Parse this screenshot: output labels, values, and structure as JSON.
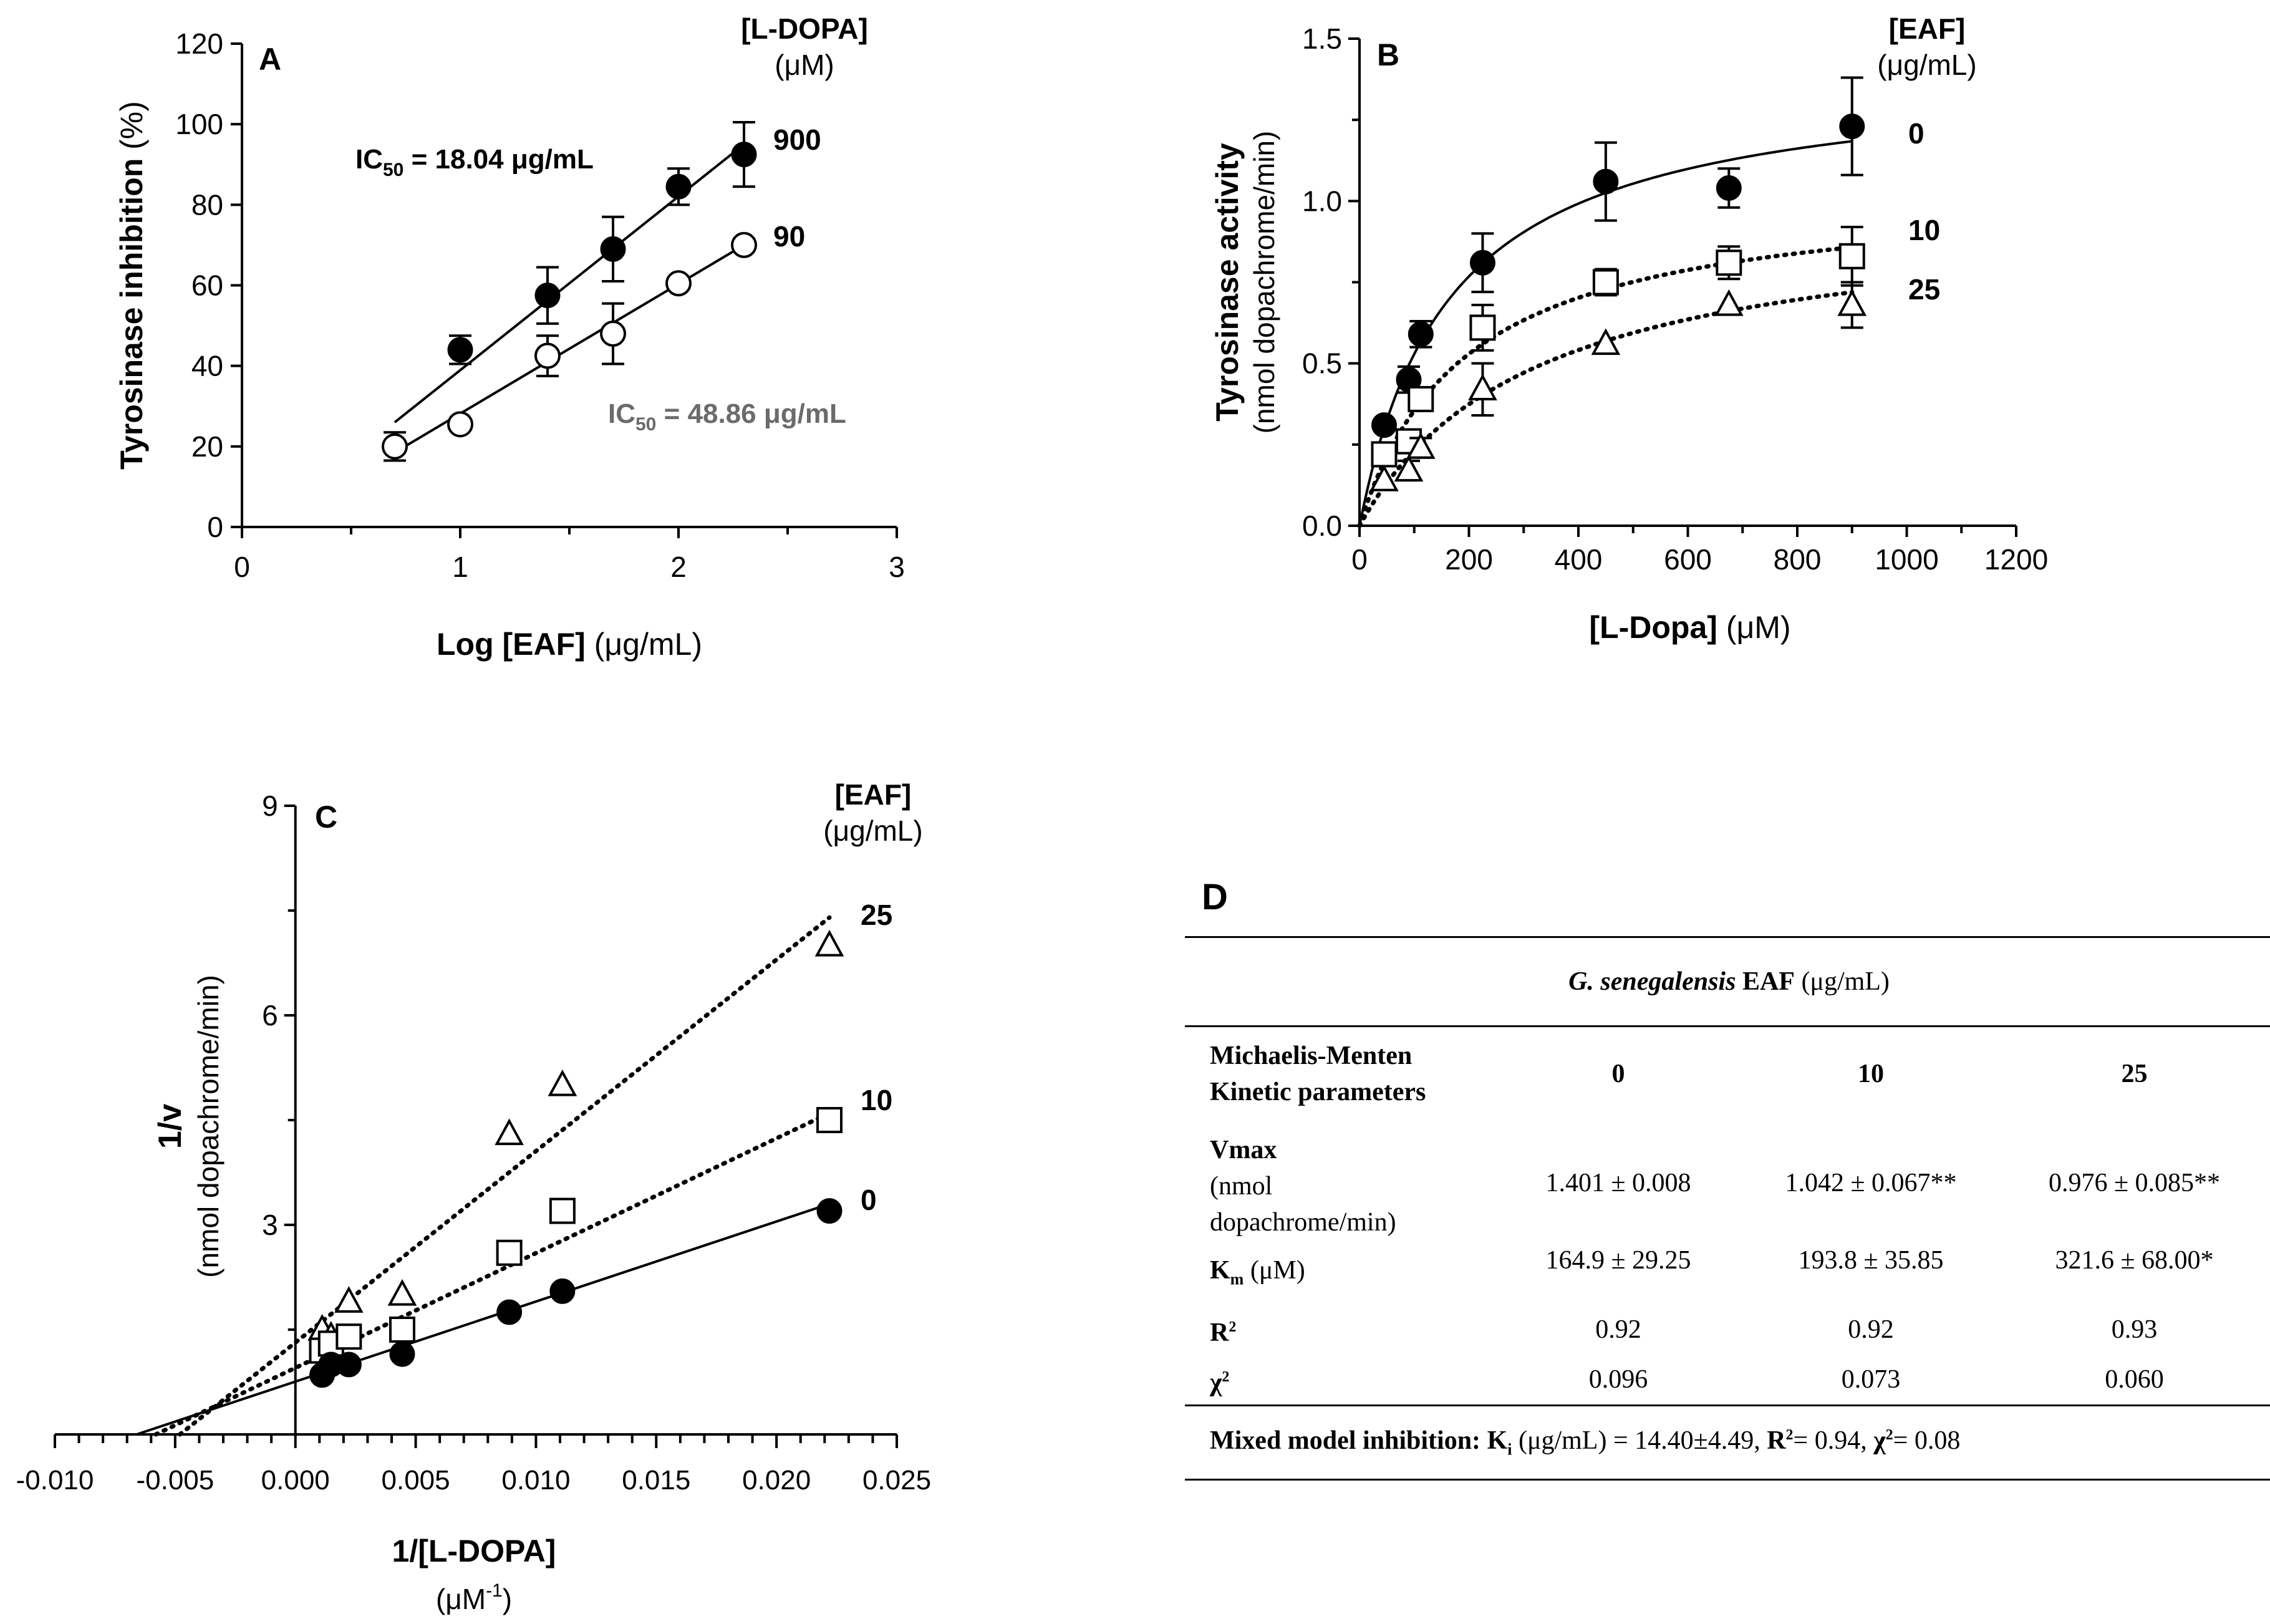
{
  "chart_data": [
    {
      "panel": "A",
      "type": "scatter",
      "ylabel": "Tyrosinase inhibition",
      "ylabel_unit": "(%)",
      "xlabel": "Log [EAF]",
      "xlabel_unit": "(μg/mL)",
      "xlim": [
        0,
        3
      ],
      "ylim": [
        0,
        120
      ],
      "xticks": [
        "0",
        "1",
        "2",
        "3"
      ],
      "yticks": [
        "0",
        "20",
        "40",
        "60",
        "80",
        "100",
        "120"
      ],
      "legend_title": "[L-DOPA]",
      "legend_unit": "(μM)",
      "series": [
        {
          "name": "900",
          "marker": "filled-circle",
          "x": [
            0.7,
            1.0,
            1.4,
            1.7,
            2.0,
            2.3
          ],
          "y": [
            20,
            44,
            57.5,
            69,
            84.5,
            92.5
          ],
          "err": [
            3.5,
            3.5,
            7,
            8,
            4.5,
            8
          ],
          "fit": [
            [
              0.7,
              26
            ],
            [
              2.3,
              95
            ]
          ]
        },
        {
          "name": "90",
          "marker": "open-circle",
          "x": [
            0.7,
            1.0,
            1.4,
            1.7,
            2.0,
            2.3
          ],
          "y": [
            20,
            25.5,
            42.5,
            48,
            60.5,
            70
          ],
          "err": [
            0,
            0,
            5,
            7.5,
            0,
            0
          ],
          "fit": [
            [
              0.7,
              18.5
            ],
            [
              2.3,
              70
            ]
          ]
        }
      ],
      "annotations": {
        "ic50_900_prefix": "IC",
        "ic50_900_sub": "50",
        "ic50_900_value": " = 18.04 μg/mL",
        "ic50_90_prefix": "IC",
        "ic50_90_sub": "50",
        "ic50_90_value": " = 48.86 μg/mL"
      }
    },
    {
      "panel": "B",
      "type": "scatter",
      "ylabel": "Tyrosinase activity",
      "ylabel2": "(nmol dopachrome/min)",
      "xlabel": "[L-Dopa]",
      "xlabel_unit": "(μM)",
      "xlim": [
        0,
        1200
      ],
      "ylim": [
        0,
        1.5
      ],
      "xticks": [
        "0",
        "200",
        "400",
        "600",
        "800",
        "1000",
        "1200"
      ],
      "yticks": [
        "0.0",
        "0.5",
        "1.0",
        "1.5"
      ],
      "legend_title": "[EAF]",
      "legend_unit": "(μg/mL)",
      "series": [
        {
          "name": "0",
          "marker": "filled-circle",
          "line": "solid",
          "vmax": 1.401,
          "km": 164.9,
          "x": [
            45,
            90,
            112,
            225,
            450,
            675,
            900
          ],
          "y": [
            0.31,
            0.45,
            0.59,
            0.81,
            1.06,
            1.04,
            1.23
          ],
          "err": [
            0,
            0.04,
            0.04,
            0.09,
            0.12,
            0.06,
            0.15
          ]
        },
        {
          "name": "10",
          "marker": "open-square",
          "line": "dotted",
          "vmax": 1.042,
          "km": 193.8,
          "x": [
            45,
            90,
            112,
            225,
            450,
            675,
            900
          ],
          "y": [
            0.22,
            0.26,
            0.39,
            0.61,
            0.75,
            0.81,
            0.83
          ],
          "err": [
            0,
            0.03,
            0.03,
            0.07,
            0.04,
            0.05,
            0.09
          ]
        },
        {
          "name": "25",
          "marker": "open-triangle",
          "line": "dotted",
          "vmax": 0.976,
          "km": 321.6,
          "x": [
            45,
            90,
            112,
            225,
            450,
            675,
            900
          ],
          "y": [
            0.14,
            0.17,
            0.24,
            0.42,
            0.56,
            0.68,
            0.68
          ],
          "err": [
            0,
            0.03,
            0.03,
            0.08,
            0,
            0,
            0.07
          ]
        }
      ]
    },
    {
      "panel": "C",
      "type": "scatter",
      "ylabel": "1/v",
      "ylabel2": "(nmol dopachrome/min)",
      "xlabel": "1/[L-DOPA]",
      "xlabel_unit_base": "(μM",
      "xlabel_unit_exp": "-1",
      "xlabel_unit_close": ")",
      "xlim": [
        -0.01,
        0.025
      ],
      "ylim": [
        0,
        9
      ],
      "xticks": [
        "-0.010",
        "-0.005",
        "0.000",
        "0.005",
        "0.010",
        "0.015",
        "0.020",
        "0.025"
      ],
      "yticks": [
        "3",
        "6",
        "9"
      ],
      "legend_title": "[EAF]",
      "legend_unit": "(μg/mL)",
      "series": [
        {
          "name": "25",
          "marker": "open-triangle",
          "line": "dotted",
          "x": [
            0.00111,
            0.00148,
            0.00222,
            0.00444,
            0.00889,
            0.0111,
            0.0222
          ],
          "y": [
            1.5,
            1.4,
            1.9,
            2.0,
            4.3,
            5.0,
            7.0
          ],
          "fit": [
            [
              -0.0048,
              0
            ],
            [
              0.0222,
              7.4
            ]
          ]
        },
        {
          "name": "10",
          "marker": "open-square",
          "line": "dotted",
          "x": [
            0.00111,
            0.00148,
            0.00222,
            0.00444,
            0.00889,
            0.0111,
            0.0222
          ],
          "y": [
            1.2,
            1.3,
            1.4,
            1.5,
            2.6,
            3.2,
            4.5
          ],
          "fit": [
            [
              -0.0058,
              0
            ],
            [
              0.0222,
              4.6
            ]
          ]
        },
        {
          "name": "0",
          "marker": "filled-circle",
          "line": "solid",
          "x": [
            0.00111,
            0.00148,
            0.00222,
            0.00444,
            0.00889,
            0.0111,
            0.0222
          ],
          "y": [
            0.85,
            1.0,
            1.0,
            1.15,
            1.75,
            2.05,
            3.2
          ],
          "fit": [
            [
              -0.0066,
              0
            ],
            [
              0.0222,
              3.3
            ]
          ]
        }
      ]
    }
  ],
  "panel_labels": {
    "a": "A",
    "b": "B",
    "c": "C",
    "d": "D"
  },
  "table": {
    "header_species": "G. senegalensis",
    "header_species_tail": " EAF",
    "header_unit": " (μg/mL)",
    "param_line1": "Michaelis-Menten",
    "param_line2": "Kinetic parameters",
    "cols": [
      "0",
      "10",
      "25"
    ],
    "vmax_label": "Vmax",
    "vmax_unit1": "(nmol",
    "vmax_unit2": "dopachrome/min)",
    "vmax_values": [
      "1.401 ± 0.008",
      "1.042 ± 0.067**",
      "0.976 ± 0.085**"
    ],
    "km_label_base": "K",
    "km_label_sub": "m",
    "km_unit": " (μM)",
    "km_values": [
      "164.9 ± 29.25",
      "193.8 ± 35.85",
      "321.6 ± 68.00*"
    ],
    "r2_base": "R",
    "r2_exp": "2",
    "r2_values": [
      "0.92",
      "0.92",
      "0.93"
    ],
    "chi_base": "χ",
    "chi_exp": "2",
    "chi_values": [
      "0.096",
      "0.073",
      "0.060"
    ],
    "footer_bold": "Mixed model inhibition: ",
    "footer_ki_base": "K",
    "footer_ki_sub": "i",
    "footer_ki_text": " (μg/mL) = 14.40±4.49, ",
    "footer_r_base": "R",
    "footer_r_exp": "2",
    "footer_r_text": "= 0.94, ",
    "footer_chi_base": "χ",
    "footer_chi_exp": "2",
    "footer_chi_text": "= 0.08"
  }
}
